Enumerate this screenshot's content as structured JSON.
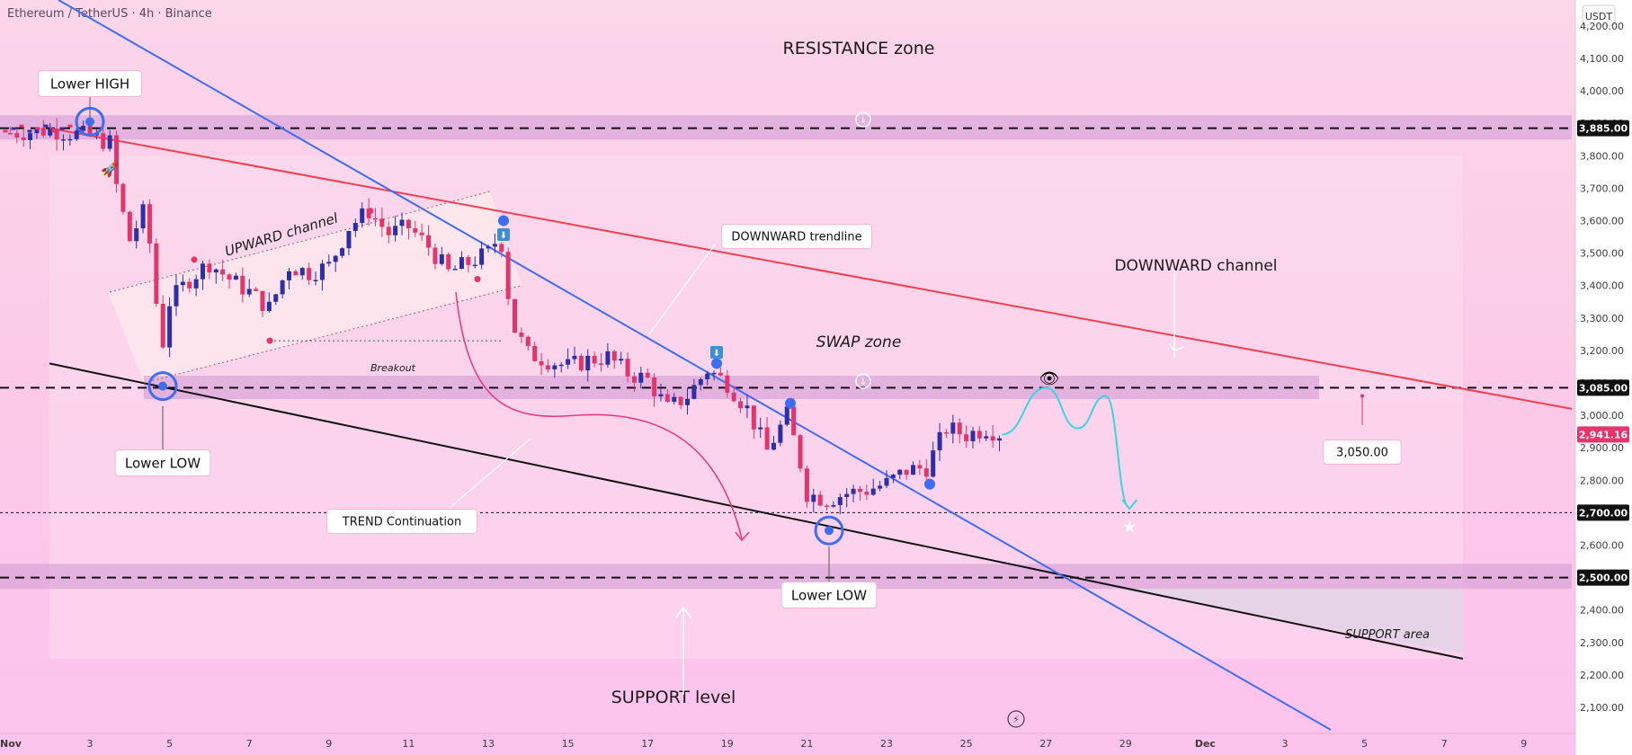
{
  "header": {
    "symbol_text": "Ethereum / TetherUS · 4h · Binance",
    "currency": "USDT"
  },
  "annotations": {
    "resistance_zone": "RESISTANCE zone",
    "lower_high": "Lower HIGH",
    "upward_channel": "UPWARD channel",
    "downward_trendline": "DOWNWARD trendline",
    "downward_channel": "DOWNWARD channel",
    "swap_zone": "SWAP zone",
    "breakout": "Breakout",
    "lower_low_1": "Lower LOW",
    "lower_low_2": "Lower LOW",
    "trend_continuation": "TREND Continuation",
    "support_level": "SUPPORT level",
    "support_area": "SUPPORT area",
    "target_price": "3,050.00"
  },
  "colors": {
    "candle_up": "#2d2fa8",
    "candle_down": "#e2356b",
    "trendline": "#3f6df2",
    "downward_channel": "#f23f4f",
    "channel_lower": "#111111",
    "projection": "#37d6e0",
    "arrow": "#e8367c",
    "zone_fill": "#d9a4d9",
    "last_price_badge": "#e8346b"
  },
  "chart_data": {
    "type": "candlestick",
    "ylim": [
      2100,
      4300
    ],
    "y_ticks": [
      "4,200.00",
      "4,100.00",
      "4,000.00",
      "3,900.00",
      "3,800.00",
      "3,700.00",
      "3,600.00",
      "3,500.00",
      "3,400.00",
      "3,300.00",
      "3,200.00",
      "3,100.00",
      "3,000.00",
      "2,900.00",
      "2,800.00",
      "2,700.00",
      "2,600.00",
      "2,500.00",
      "2,400.00",
      "2,300.00",
      "2,200.00",
      "2,100.00"
    ],
    "x_ticks": [
      "Nov",
      "3",
      "5",
      "7",
      "9",
      "11",
      "13",
      "15",
      "17",
      "19",
      "21",
      "23",
      "25",
      "27",
      "29",
      "Dec",
      "3",
      "5",
      "7",
      "9"
    ],
    "price_levels": [
      {
        "label": "3,885.00",
        "value": 3885
      },
      {
        "label": "3,085.00",
        "value": 3085
      },
      {
        "label": "2,700.00",
        "value": 2700
      },
      {
        "label": "2,500.00",
        "value": 2500
      }
    ],
    "last_price": {
      "label": "2,941.16",
      "value": 2941.16
    },
    "zones": [
      {
        "name": "resistance",
        "from": 3850,
        "to": 3925
      },
      {
        "name": "swap",
        "from": 3050,
        "to": 3122
      },
      {
        "name": "support",
        "from": 2465,
        "to": 2542
      }
    ],
    "close_path": [
      [
        1,
        3870
      ],
      [
        2,
        3880
      ],
      [
        3,
        3860
      ],
      [
        3.5,
        3840
      ],
      [
        3.7,
        3680
      ],
      [
        4,
        3540
      ],
      [
        4.4,
        3640
      ],
      [
        4.8,
        3200
      ],
      [
        5,
        3350
      ],
      [
        5.5,
        3420
      ],
      [
        6,
        3470
      ],
      [
        6.5,
        3420
      ],
      [
        7,
        3380
      ],
      [
        7.5,
        3330
      ],
      [
        8,
        3460
      ],
      [
        8.5,
        3440
      ],
      [
        9,
        3460
      ],
      [
        9.5,
        3580
      ],
      [
        10,
        3630
      ],
      [
        10.5,
        3560
      ],
      [
        11,
        3580
      ],
      [
        11.5,
        3520
      ],
      [
        12,
        3440
      ],
      [
        12.5,
        3470
      ],
      [
        13,
        3500
      ],
      [
        13.3,
        3560
      ],
      [
        13.6,
        3280
      ],
      [
        14,
        3190
      ],
      [
        14.5,
        3170
      ],
      [
        15,
        3150
      ],
      [
        15.5,
        3170
      ],
      [
        16,
        3180
      ],
      [
        16.5,
        3130
      ],
      [
        17,
        3110
      ],
      [
        17.5,
        3020
      ],
      [
        18,
        3060
      ],
      [
        18.5,
        3140
      ],
      [
        19,
        3100
      ],
      [
        19.5,
        3020
      ],
      [
        20,
        2890
      ],
      [
        20.5,
        3000
      ],
      [
        20.8,
        2870
      ],
      [
        21,
        2760
      ],
      [
        21.5,
        2740
      ],
      [
        22,
        2760
      ],
      [
        22.5,
        2770
      ],
      [
        23,
        2790
      ],
      [
        23.5,
        2830
      ],
      [
        24,
        2840
      ],
      [
        24.5,
        2960
      ],
      [
        25,
        2940
      ],
      [
        25.5,
        2960
      ],
      [
        25.9,
        2941
      ]
    ],
    "projection_path": [
      [
        25.9,
        2941
      ],
      [
        27,
        3085
      ],
      [
        27.8,
        2960
      ],
      [
        28.5,
        3060
      ],
      [
        29.1,
        2715
      ]
    ]
  }
}
